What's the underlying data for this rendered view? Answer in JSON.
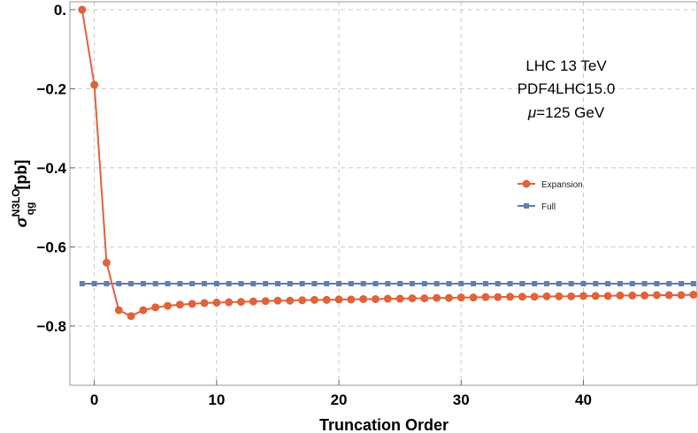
{
  "chart_data": {
    "type": "line",
    "xlabel": "Truncation Order",
    "ylabel_sym": "σ",
    "ylabel_sup": "N3LO",
    "ylabel_sub": "qg",
    "ylabel_unit": "[pb]",
    "xlim": [
      -2,
      49.3
    ],
    "ylim": [
      -0.95,
      0.02
    ],
    "x_ticks": [
      0,
      10,
      20,
      30,
      40
    ],
    "y_ticks": [
      0.0,
      -0.2,
      -0.4,
      -0.6,
      -0.8
    ],
    "y_tick_labels": [
      "0.",
      "−0.2",
      "−0.4",
      "−0.6",
      "−0.8"
    ],
    "grid": true,
    "legend_position": "right-middle",
    "annotations": [
      "LHC 13 TeV",
      "PDF4LHC15.0",
      "=125 GeV"
    ],
    "annotation_mu": "μ",
    "series": [
      {
        "name": "Expansion",
        "color": "#e0633a",
        "marker": "circle",
        "x": [
          -1,
          0,
          1,
          2,
          3,
          4,
          5,
          6,
          7,
          8,
          9,
          10,
          11,
          12,
          13,
          14,
          15,
          16,
          17,
          18,
          19,
          20,
          21,
          22,
          23,
          24,
          25,
          26,
          27,
          28,
          29,
          30,
          31,
          32,
          33,
          34,
          35,
          36,
          37,
          38,
          39,
          40,
          41,
          42,
          43,
          44,
          45,
          46,
          47,
          48,
          49
        ],
        "y": [
          0.0,
          -0.19,
          -0.64,
          -0.76,
          -0.775,
          -0.76,
          -0.753,
          -0.749,
          -0.746,
          -0.744,
          -0.742,
          -0.741,
          -0.74,
          -0.739,
          -0.738,
          -0.737,
          -0.736,
          -0.736,
          -0.735,
          -0.734,
          -0.734,
          -0.733,
          -0.733,
          -0.732,
          -0.732,
          -0.731,
          -0.731,
          -0.73,
          -0.73,
          -0.729,
          -0.729,
          -0.728,
          -0.728,
          -0.727,
          -0.727,
          -0.726,
          -0.726,
          -0.726,
          -0.725,
          -0.725,
          -0.725,
          -0.724,
          -0.724,
          -0.724,
          -0.723,
          -0.723,
          -0.723,
          -0.722,
          -0.722,
          -0.722,
          -0.721
        ]
      },
      {
        "name": "Full",
        "color": "#5b7fb5",
        "marker": "square",
        "x": [
          -1,
          0,
          1,
          2,
          3,
          4,
          5,
          6,
          7,
          8,
          9,
          10,
          11,
          12,
          13,
          14,
          15,
          16,
          17,
          18,
          19,
          20,
          21,
          22,
          23,
          24,
          25,
          26,
          27,
          28,
          29,
          30,
          31,
          32,
          33,
          34,
          35,
          36,
          37,
          38,
          39,
          40,
          41,
          42,
          43,
          44,
          45,
          46,
          47,
          48,
          49
        ],
        "y": [
          -0.693,
          -0.693,
          -0.693,
          -0.693,
          -0.693,
          -0.693,
          -0.693,
          -0.693,
          -0.693,
          -0.693,
          -0.693,
          -0.693,
          -0.693,
          -0.693,
          -0.693,
          -0.693,
          -0.693,
          -0.693,
          -0.693,
          -0.693,
          -0.693,
          -0.693,
          -0.693,
          -0.693,
          -0.693,
          -0.693,
          -0.693,
          -0.693,
          -0.693,
          -0.693,
          -0.693,
          -0.693,
          -0.693,
          -0.693,
          -0.693,
          -0.693,
          -0.693,
          -0.693,
          -0.693,
          -0.693,
          -0.693,
          -0.693,
          -0.693,
          -0.693,
          -0.693,
          -0.693,
          -0.693,
          -0.693,
          -0.693,
          -0.693,
          -0.693
        ]
      }
    ]
  }
}
